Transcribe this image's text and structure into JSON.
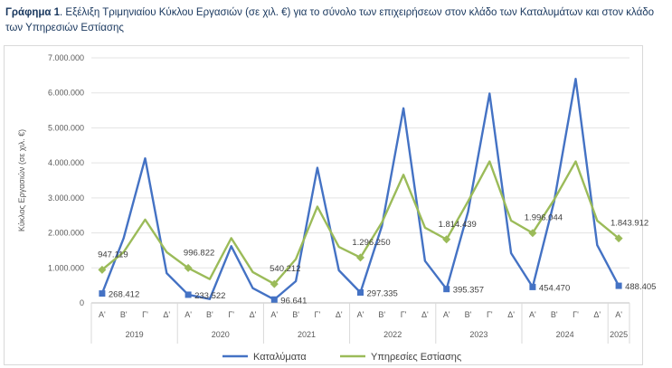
{
  "title": {
    "prefix": "Γράφημα 1",
    "text": ". Εξέλιξη Τριμηνιαίου Κύκλου Εργασιών (σε χιλ. €) για το σύνολο των επιχειρήσεων στον κλάδο των Καταλυμάτων και στον κλάδο των Υπηρεσιών Εστίασης"
  },
  "chart_data": {
    "type": "line",
    "ylabel": "Κύκλος Εργασιών (σε χιλ. €)",
    "xlabel": "",
    "ylim": [
      0,
      7000000
    ],
    "y_ticks": [
      "0",
      "1.000.000",
      "2.000.000",
      "3.000.000",
      "4.000.000",
      "5.000.000",
      "6.000.000",
      "7.000.000"
    ],
    "y_tick_values": [
      0,
      1000000,
      2000000,
      3000000,
      4000000,
      5000000,
      6000000,
      7000000
    ],
    "grid": true,
    "legend_position": "bottom",
    "categories": [
      "Α'",
      "Β'",
      "Γ'",
      "Δ'",
      "Α'",
      "Β'",
      "Γ'",
      "Δ'",
      "Α'",
      "Β'",
      "Γ'",
      "Δ'",
      "Α'",
      "Β'",
      "Γ'",
      "Δ'",
      "Α'",
      "Β'",
      "Γ'",
      "Δ'",
      "Α'",
      "Β'",
      "Γ'",
      "Δ'",
      "Α'"
    ],
    "years": [
      {
        "label": "2019",
        "count": 4
      },
      {
        "label": "2020",
        "count": 4
      },
      {
        "label": "2021",
        "count": 4
      },
      {
        "label": "2022",
        "count": 4
      },
      {
        "label": "2023",
        "count": 4
      },
      {
        "label": "2024",
        "count": 4
      },
      {
        "label": "2025",
        "count": 1
      }
    ],
    "series": [
      {
        "name": "Καταλύματα",
        "color": "#4472c4",
        "values": [
          268412,
          1850000,
          4130000,
          850000,
          233522,
          110000,
          1620000,
          420000,
          96641,
          620000,
          3860000,
          930000,
          297335,
          2200000,
          5560000,
          1200000,
          395357,
          2600000,
          5980000,
          1420000,
          454470,
          2900000,
          6400000,
          1650000,
          488405
        ],
        "labels": {
          "0": "268.412",
          "4": "233.522",
          "8": "96.641",
          "12": "297.335",
          "16": "395.357",
          "20": "454.470",
          "24": "488.405"
        }
      },
      {
        "name": "Υπηρεσίες Εστίασης",
        "color": "#9bbb59",
        "values": [
          947119,
          1450000,
          2380000,
          1450000,
          996822,
          680000,
          1850000,
          880000,
          540212,
          1250000,
          2750000,
          1600000,
          1296250,
          2300000,
          3660000,
          2150000,
          1814439,
          2900000,
          4040000,
          2350000,
          1996044,
          2950000,
          4040000,
          2350000,
          1843912
        ],
        "labels": {
          "0": "947.119",
          "4": "996.822",
          "8": "540.212",
          "12": "1.296.250",
          "16": "1.814.439",
          "20": "1.996.044",
          "24": "1.843.912"
        }
      }
    ]
  }
}
